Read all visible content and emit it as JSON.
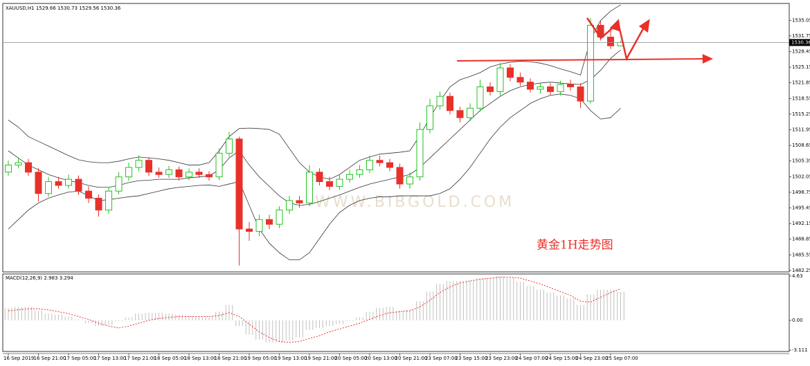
{
  "chart_data": [
    {
      "type": "candlestick",
      "symbol": "XAUUSD,H1",
      "categories": [
        "16 Sep 2019",
        null,
        null,
        "16 Sep 21:00",
        null,
        null,
        "17 Sep 05:00",
        null,
        null,
        "17 Sep 13:00",
        null,
        null,
        "17 Sep 21:00",
        null,
        null,
        "18 Sep 05:00",
        null,
        null,
        "18 Sep 13:00",
        null,
        null,
        "18 Sep 21:00",
        null,
        null,
        "19 Sep 05:00",
        null,
        null,
        "19 Sep 13:00",
        null,
        null,
        "19 Sep 21:00",
        null,
        null,
        "20 Sep 05:00",
        null,
        null,
        "20 Sep 13:00",
        null,
        null,
        "20 Sep 21:00",
        null,
        null,
        "23 Sep 07:00",
        null,
        null,
        "23 Sep 15:00",
        null,
        null,
        "23 Sep 23:00",
        null,
        null,
        "24 Sep 07:00",
        null,
        null,
        "24 Sep 15:00",
        null,
        null,
        "24 Sep 23:00",
        null,
        null,
        "25 Sep 07:00",
        null
      ],
      "open": [
        1503.0,
        1504.5,
        1505.0,
        1503.0,
        1498.5,
        1501.0,
        1500.2,
        1501.5,
        1499.0,
        1497.5,
        1495.0,
        1499.0,
        1502.0,
        1504.0,
        1505.5,
        1503.0,
        1502.5,
        1503.5,
        1502.0,
        1503.0,
        1502.5,
        1502.0,
        1507.0,
        1510.0,
        1491.0,
        1490.5,
        1493.0,
        1492.0,
        1495.0,
        1497.0,
        1496.5,
        1503.0,
        1501.0,
        1500.0,
        1501.5,
        1502.5,
        1503.5,
        1505.5,
        1505.0,
        1504.0,
        1500.5,
        1502.0,
        1512.0,
        1517.0,
        1519.0,
        1516.0,
        1514.5,
        1516.5,
        1521.0,
        1520.0,
        1525.0,
        1523.0,
        1522.0,
        1520.5,
        1521.0,
        1520.0,
        1521.5,
        1521.0,
        1518.0,
        1534.0,
        1531.5,
        1529.66
      ],
      "high": [
        1505.5,
        1506.0,
        1505.8,
        1503.8,
        1502.0,
        1502.0,
        1502.5,
        1502.3,
        1500.0,
        1498.3,
        1499.8,
        1503.0,
        1505.0,
        1506.5,
        1506.2,
        1504.0,
        1504.3,
        1504.2,
        1503.8,
        1503.8,
        1503.2,
        1508.0,
        1511.5,
        1510.5,
        1492.5,
        1494.0,
        1494.0,
        1495.8,
        1498.0,
        1498.0,
        1504.5,
        1503.8,
        1502.0,
        1502.5,
        1503.5,
        1504.5,
        1506.5,
        1506.5,
        1505.8,
        1504.8,
        1503.0,
        1513.5,
        1518.5,
        1520.0,
        1519.8,
        1516.8,
        1517.5,
        1522.5,
        1522.0,
        1526.0,
        1525.8,
        1524.0,
        1522.8,
        1521.8,
        1521.8,
        1522.3,
        1522.5,
        1521.8,
        1535.5,
        1534.8,
        1533.5,
        1530.73
      ],
      "low": [
        1502.2,
        1503.8,
        1502.2,
        1496.8,
        1497.8,
        1499.5,
        1499.5,
        1498.2,
        1496.5,
        1493.6,
        1494.2,
        1498.3,
        1501.2,
        1503.2,
        1502.2,
        1501.8,
        1501.8,
        1501.2,
        1501.3,
        1501.8,
        1501.2,
        1501.3,
        1506.2,
        1483.3,
        1488.5,
        1489.5,
        1491.0,
        1491.2,
        1494.2,
        1495.5,
        1495.8,
        1500.2,
        1499.2,
        1499.3,
        1500.8,
        1501.8,
        1502.8,
        1504.2,
        1503.2,
        1499.5,
        1499.5,
        1501.2,
        1511.2,
        1516.2,
        1515.2,
        1513.5,
        1513.8,
        1515.8,
        1519.2,
        1519.2,
        1522.2,
        1521.2,
        1519.8,
        1519.6,
        1519.2,
        1519.2,
        1520.2,
        1516.5,
        1517.5,
        1530.8,
        1529.0,
        1529.56
      ],
      "close": [
        1504.5,
        1505.0,
        1503.0,
        1498.5,
        1501.0,
        1500.2,
        1501.5,
        1499.0,
        1497.5,
        1495.0,
        1499.0,
        1502.0,
        1504.0,
        1505.5,
        1503.0,
        1502.5,
        1503.5,
        1502.0,
        1503.0,
        1502.5,
        1502.0,
        1507.0,
        1510.0,
        1491.0,
        1490.5,
        1493.0,
        1492.0,
        1495.0,
        1497.0,
        1496.5,
        1503.0,
        1501.0,
        1500.0,
        1501.5,
        1502.5,
        1503.5,
        1505.5,
        1505.0,
        1504.0,
        1500.5,
        1502.0,
        1512.0,
        1517.0,
        1519.0,
        1516.0,
        1514.5,
        1516.5,
        1521.0,
        1520.0,
        1525.0,
        1523.0,
        1522.0,
        1520.5,
        1521.0,
        1520.0,
        1521.5,
        1521.0,
        1518.0,
        1534.0,
        1531.5,
        1529.66,
        1530.36
      ],
      "upper_band": [
        1514.0,
        1512.5,
        1510.5,
        1509.5,
        1508.5,
        1507.5,
        1506.5,
        1505.6,
        1505.2,
        1505.0,
        1505.0,
        1505.3,
        1505.8,
        1506.2,
        1506.0,
        1505.8,
        1505.5,
        1505.0,
        1504.5,
        1504.5,
        1505.0,
        1507.5,
        1510.5,
        1512.2,
        1512.3,
        1512.2,
        1512.0,
        1511.0,
        1508.0,
        1505.0,
        1503.0,
        1502.0,
        1501.5,
        1502.5,
        1504.0,
        1505.5,
        1506.2,
        1506.8,
        1507.0,
        1507.2,
        1507.5,
        1510.7,
        1514.5,
        1518.0,
        1521.0,
        1522.5,
        1523.2,
        1524.0,
        1525.2,
        1525.8,
        1526.2,
        1526.4,
        1526.3,
        1526.0,
        1525.5,
        1524.8,
        1524.2,
        1523.5,
        1531.0,
        1535.0,
        1537.0,
        1538.3
      ],
      "middle_band": [
        1507.5,
        1506.0,
        1504.5,
        1503.5,
        1502.5,
        1501.8,
        1501.2,
        1500.8,
        1500.2,
        1499.8,
        1499.8,
        1500.2,
        1500.8,
        1501.2,
        1501.3,
        1501.5,
        1501.5,
        1501.5,
        1501.8,
        1502.0,
        1502.2,
        1503.5,
        1506.0,
        1507.5,
        1504.5,
        1502.0,
        1500.0,
        1498.0,
        1496.5,
        1496.0,
        1496.2,
        1496.8,
        1497.5,
        1498.2,
        1499.0,
        1499.8,
        1500.5,
        1501.0,
        1501.5,
        1502.0,
        1502.5,
        1504.0,
        1506.0,
        1508.0,
        1510.0,
        1512.0,
        1514.0,
        1516.0,
        1517.5,
        1519.0,
        1520.2,
        1521.0,
        1521.5,
        1521.8,
        1522.0,
        1521.8,
        1521.6,
        1521.5,
        1522.5,
        1524.5,
        1527.0,
        1528.8
      ],
      "lower_band": [
        1491.0,
        1493.0,
        1495.0,
        1496.5,
        1497.5,
        1498.2,
        1498.8,
        1499.0,
        1498.0,
        1497.0,
        1497.2,
        1497.5,
        1497.8,
        1498.0,
        1498.5,
        1499.0,
        1499.5,
        1499.8,
        1500.0,
        1500.2,
        1500.3,
        1500.0,
        1500.5,
        1501.0,
        1496.0,
        1491.0,
        1488.0,
        1486.0,
        1484.5,
        1484.5,
        1486.0,
        1489.0,
        1492.0,
        1494.5,
        1496.0,
        1497.0,
        1497.5,
        1497.8,
        1497.8,
        1498.0,
        1498.0,
        1498.0,
        1498.0,
        1498.5,
        1499.5,
        1501.5,
        1504.0,
        1507.0,
        1510.0,
        1512.5,
        1514.5,
        1516.0,
        1517.5,
        1518.5,
        1519.2,
        1519.5,
        1519.2,
        1518.5,
        1516.0,
        1514.2,
        1514.5,
        1516.5
      ],
      "up_color": "#22c322",
      "down_color": "#e8312a",
      "band_color": "#333333",
      "ylim": [
        1481.95,
        1538.6
      ],
      "yticks": [
        1535.05,
        1531.75,
        1528.45,
        1525.15,
        1521.85,
        1518.55,
        1515.25,
        1511.95,
        1508.65,
        1505.35,
        1502.05,
        1498.75,
        1495.45,
        1492.15,
        1488.85,
        1485.55,
        1482.25
      ],
      "annotation": "黄金1H走势图",
      "watermark": "WWW.BIBGOLD.COM"
    },
    {
      "type": "macd",
      "title": "MACD(12,26,9)",
      "histogram": [
        1.3,
        1.4,
        1.4,
        1.0,
        0.7,
        0.6,
        0.4,
        0.1,
        -0.3,
        -0.6,
        -0.5,
        -0.1,
        0.3,
        0.7,
        0.8,
        0.8,
        0.7,
        0.6,
        0.5,
        0.4,
        0.4,
        0.9,
        1.6,
        -0.6,
        -1.5,
        -2.0,
        -2.3,
        -2.3,
        -2.1,
        -1.8,
        -1.0,
        -0.8,
        -0.6,
        -0.4,
        -0.1,
        0.3,
        0.9,
        1.3,
        1.4,
        1.0,
        1.1,
        2.0,
        3.0,
        3.8,
        4.1,
        4.1,
        4.2,
        4.4,
        4.4,
        4.6,
        4.4,
        4.0,
        3.6,
        3.2,
        2.9,
        2.6,
        2.3,
        1.6,
        2.7,
        3.2,
        3.2,
        2.983
      ],
      "signal": [
        1.0,
        1.1,
        1.2,
        1.2,
        1.1,
        0.9,
        0.7,
        0.4,
        0.1,
        -0.3,
        -0.6,
        -0.8,
        -0.6,
        -0.3,
        0.0,
        0.2,
        0.3,
        0.4,
        0.4,
        0.4,
        0.4,
        0.5,
        0.8,
        0.4,
        -0.4,
        -1.2,
        -1.8,
        -2.2,
        -2.3,
        -2.2,
        -1.9,
        -1.6,
        -1.2,
        -0.9,
        -0.6,
        -0.3,
        0.1,
        0.5,
        0.8,
        0.9,
        1.0,
        1.4,
        2.1,
        2.9,
        3.5,
        3.9,
        4.1,
        4.3,
        4.4,
        4.5,
        4.5,
        4.4,
        4.1,
        3.8,
        3.4,
        3.0,
        2.6,
        2.0,
        1.9,
        2.4,
        2.9,
        3.294
      ],
      "histogram_color": "#c0c0c0",
      "signal_color": "#e8312a",
      "ylim": [
        -3.25,
        4.84
      ],
      "yticks": [
        4.63,
        {
          "value": 0,
          "label": "0.00"
        },
        -3.111
      ]
    }
  ]
}
